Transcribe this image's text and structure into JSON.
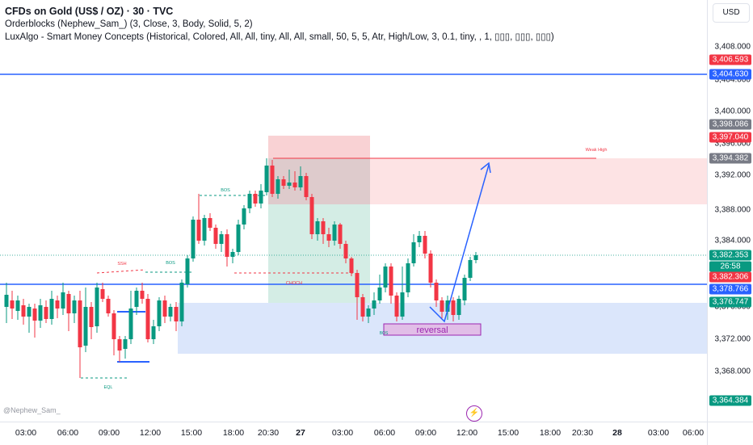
{
  "legend": {
    "title": "CFDs on Gold (US$ / OZ) · 30 · TVC",
    "line1": "Orderblocks (Nephew_Sam_) (3, Close, 3, Body, Solid, 5, 2)",
    "line2": "LuxAlgo - Smart Money Concepts (Historical, Colored, All, All, tiny, All, All, small, 50, 5, 5, Atr, High/Low, 3, 0.1, tiny, , 1, ▯▯▯, ▯▯▯, ▯▯▯)"
  },
  "currency_button": "USD",
  "price_ticks": [
    "3,408.000",
    "3,404.000",
    "3,400.000",
    "3,396.000",
    "3,392.000",
    "3,388.000",
    "3,384.000",
    "3,380.000",
    "3,376.000",
    "3,372.000",
    "3,368.000"
  ],
  "price_badges": [
    {
      "label": "3,406.593",
      "color": "#f23645"
    },
    {
      "label": "3,404.630",
      "color": "#2962ff"
    },
    {
      "label": "3,398.086",
      "color": "#787b86"
    },
    {
      "label": "3,397.040",
      "color": "#f23645"
    },
    {
      "label": "3,394.382",
      "color": "#787b86"
    },
    {
      "label": "3,382.353",
      "color": "#089981"
    },
    {
      "label": "26:58",
      "color": "#089981"
    },
    {
      "label": "3,382.306",
      "color": "#f23645"
    },
    {
      "label": "3,378.766",
      "color": "#2962ff"
    },
    {
      "label": "3,376.747",
      "color": "#089981"
    },
    {
      "label": "3,364.384",
      "color": "#089981"
    }
  ],
  "time_labels": [
    "03:00",
    "06:00",
    "09:00",
    "12:00",
    "15:00",
    "18:00",
    "20:30",
    "27",
    "03:00",
    "06:00",
    "09:00",
    "12:00",
    "15:00",
    "18:00",
    "20:30",
    "28",
    "03:00",
    "06:00"
  ],
  "annotations": {
    "reversal": "reversal",
    "weak_high": "Weak High",
    "bos1": "BOS",
    "bos2": "BOS",
    "ssh": "SSH",
    "choch": "CHOCH",
    "eql": "EQL",
    "bos_bottom": "BOS"
  },
  "watermark": "@Nephew_Sam_",
  "colors": {
    "up": "#089981",
    "down": "#f23645",
    "blue_line": "#2962ff",
    "demand_zone": "#dbe6fb",
    "supply_zone": "#fde3e4"
  }
}
